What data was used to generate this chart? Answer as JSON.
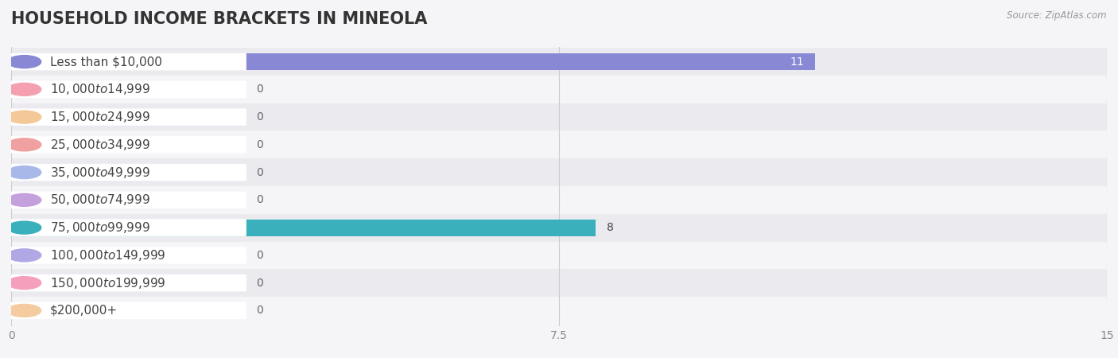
{
  "title": "HOUSEHOLD INCOME BRACKETS IN MINEOLA",
  "source": "Source: ZipAtlas.com",
  "categories": [
    "Less than $10,000",
    "$10,000 to $14,999",
    "$15,000 to $24,999",
    "$25,000 to $34,999",
    "$35,000 to $49,999",
    "$50,000 to $74,999",
    "$75,000 to $99,999",
    "$100,000 to $149,999",
    "$150,000 to $199,999",
    "$200,000+"
  ],
  "values": [
    11,
    0,
    0,
    0,
    0,
    0,
    8,
    0,
    0,
    0
  ],
  "bar_colors": [
    "#8888d4",
    "#f4a0b0",
    "#f5c898",
    "#f0a0a0",
    "#a8b8e8",
    "#c4a0dc",
    "#3ab0bc",
    "#b0a8e4",
    "#f4a0bc",
    "#f5cca0"
  ],
  "xlim": [
    0,
    15
  ],
  "xticks": [
    0,
    7.5,
    15
  ],
  "background_color": "#f5f5f8",
  "row_bg_even": "#eaeaef",
  "row_bg_odd": "#f5f5f8",
  "title_fontsize": 15,
  "label_fontsize": 11,
  "value_fontsize": 10
}
